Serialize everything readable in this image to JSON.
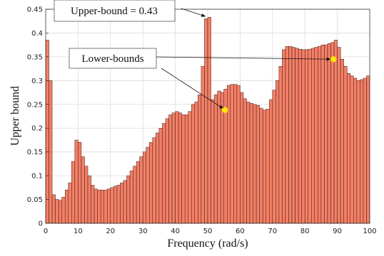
{
  "chart_data": {
    "type": "bar",
    "xlabel": "Frequency (rad/s)",
    "ylabel": "Upper bound",
    "xlim": [
      0,
      100
    ],
    "ylim": [
      0,
      0.45
    ],
    "x_ticks": [
      0,
      10,
      20,
      30,
      40,
      50,
      60,
      70,
      80,
      90,
      100
    ],
    "y_ticks": [
      0,
      0.05,
      0.1,
      0.15,
      0.2,
      0.25,
      0.3,
      0.35,
      0.4,
      0.45
    ],
    "grid": true,
    "bar_color": "#f47f66",
    "marker_color": "#ffee00",
    "bar_width": 1,
    "x": [
      0.5,
      1.5,
      2.5,
      3.5,
      4.5,
      5.5,
      6.5,
      7.5,
      8.5,
      9.5,
      10.5,
      11.5,
      12.5,
      13.5,
      14.5,
      15.5,
      16.5,
      17.5,
      18.5,
      19.5,
      20.5,
      21.5,
      22.5,
      23.5,
      24.5,
      25.5,
      26.5,
      27.5,
      28.5,
      29.5,
      30.5,
      31.5,
      32.5,
      33.5,
      34.5,
      35.5,
      36.5,
      37.5,
      38.5,
      39.5,
      40.5,
      41.5,
      42.5,
      43.5,
      44.5,
      45.5,
      46.5,
      47.5,
      48.5,
      49.5,
      50.5,
      51.5,
      52.5,
      53.5,
      54.5,
      55.5,
      56.5,
      57.5,
      58.5,
      59.5,
      60.5,
      61.5,
      62.5,
      63.5,
      64.5,
      65.5,
      66.5,
      67.5,
      68.5,
      69.5,
      70.5,
      71.5,
      72.5,
      73.5,
      74.5,
      75.5,
      76.5,
      77.5,
      78.5,
      79.5,
      80.5,
      81.5,
      82.5,
      83.5,
      84.5,
      85.5,
      86.5,
      87.5,
      88.5,
      89.5,
      90.5,
      91.5,
      92.5,
      93.5,
      94.5,
      95.5,
      96.5,
      97.5,
      98.5,
      99.5
    ],
    "values": [
      0.385,
      0.3,
      0.06,
      0.05,
      0.048,
      0.055,
      0.07,
      0.085,
      0.13,
      0.175,
      0.17,
      0.14,
      0.12,
      0.1,
      0.08,
      0.072,
      0.07,
      0.07,
      0.07,
      0.072,
      0.075,
      0.078,
      0.08,
      0.085,
      0.09,
      0.1,
      0.11,
      0.12,
      0.13,
      0.14,
      0.15,
      0.16,
      0.17,
      0.18,
      0.19,
      0.2,
      0.21,
      0.22,
      0.228,
      0.232,
      0.235,
      0.232,
      0.228,
      0.228,
      0.235,
      0.25,
      0.255,
      0.27,
      0.33,
      0.43,
      0.433,
      0.26,
      0.27,
      0.278,
      0.275,
      0.282,
      0.29,
      0.292,
      0.292,
      0.29,
      0.275,
      0.262,
      0.255,
      0.252,
      0.25,
      0.248,
      0.242,
      0.238,
      0.24,
      0.26,
      0.28,
      0.3,
      0.33,
      0.365,
      0.372,
      0.372,
      0.37,
      0.368,
      0.366,
      0.365,
      0.365,
      0.366,
      0.368,
      0.37,
      0.372,
      0.375,
      0.375,
      0.378,
      0.38,
      0.385,
      0.37,
      0.345,
      0.33,
      0.315,
      0.31,
      0.305,
      0.3,
      0.302,
      0.305,
      0.31
    ],
    "annotations": [
      {
        "text": "Upper-bound = 0.43",
        "target": [
          49.5,
          0.432
        ],
        "marker": false
      },
      {
        "text": "Lower-bounds",
        "targets": [
          [
            55.3,
            0.238
          ],
          [
            88.8,
            0.345
          ]
        ],
        "marker": true
      }
    ]
  }
}
